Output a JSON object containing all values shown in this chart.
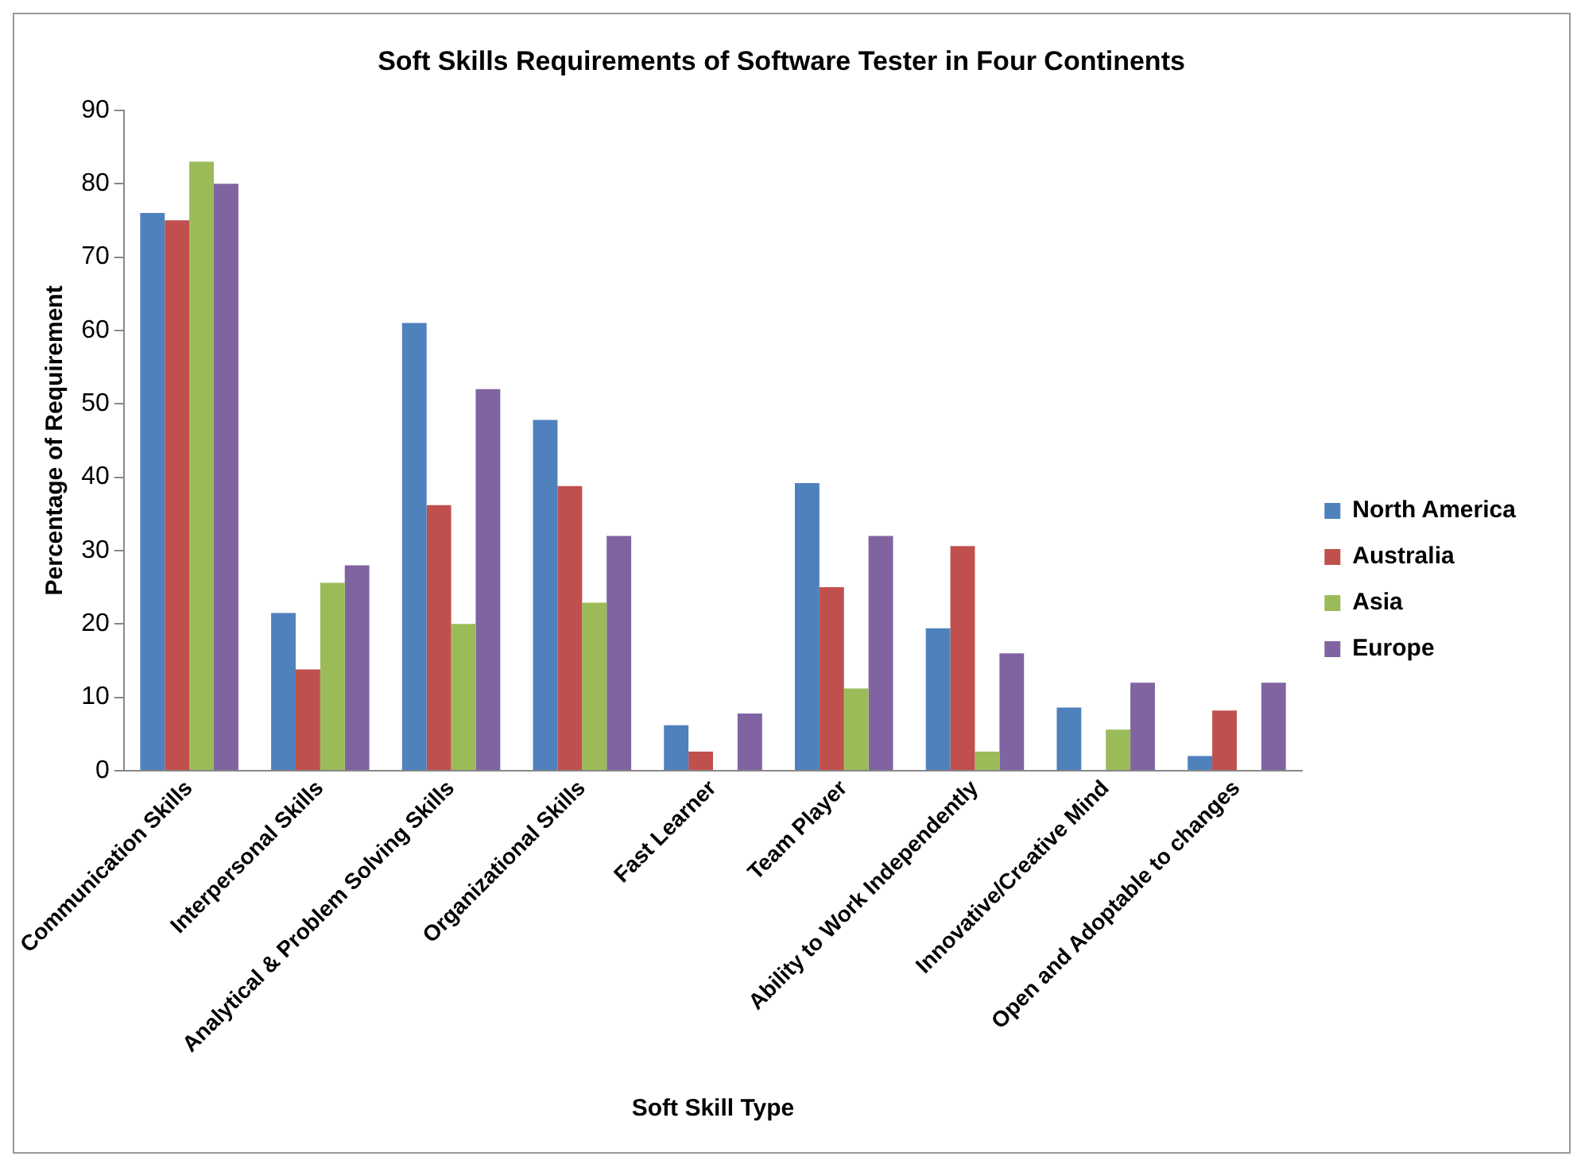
{
  "chart_data": {
    "type": "bar",
    "title": "Soft Skills Requirements of Software Tester in Four Continents",
    "xlabel": "Soft Skill Type",
    "ylabel": "Percentage of Requirement",
    "categories": [
      "Communication Skills",
      "Interpersonal Skills",
      "Analytical & Problem Solving Skills",
      "Organizational Skills",
      "Fast Learner",
      "Team Player",
      "Ability to Work Independently",
      "Innovative/Creative Mind",
      "Open and Adoptable to changes"
    ],
    "series": [
      {
        "name": "North America",
        "color": "#4f81bd",
        "values": [
          76,
          21.5,
          61,
          47.8,
          6.2,
          39.2,
          19.4,
          8.6,
          2
        ]
      },
      {
        "name": "Australia",
        "color": "#c0504d",
        "values": [
          75,
          13.8,
          36.2,
          38.8,
          2.6,
          25,
          30.6,
          0,
          8.2
        ]
      },
      {
        "name": "Asia",
        "color": "#9bbb59",
        "values": [
          83,
          25.6,
          20,
          22.9,
          0,
          11.2,
          2.6,
          5.6,
          0
        ]
      },
      {
        "name": "Europe",
        "color": "#8064a2",
        "values": [
          80,
          28,
          52,
          32,
          7.8,
          32,
          16,
          12,
          12
        ]
      }
    ],
    "ylim": [
      0,
      90
    ],
    "yticks": [
      0,
      10,
      20,
      30,
      40,
      50,
      60,
      70,
      80,
      90
    ],
    "grid": false,
    "legend": "right"
  }
}
